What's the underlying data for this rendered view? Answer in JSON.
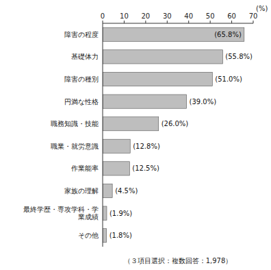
{
  "chart_data": {
    "type": "bar",
    "orientation": "horizontal",
    "categories": [
      "障害の程度",
      "基礎体力",
      "障害の種別",
      "円満な性格",
      "職務知識・技能",
      "職業・就労意識",
      "作業能率",
      "家族の理解",
      "最終学歴・専攻学科・学\n業成績",
      "その他"
    ],
    "values": [
      65.8,
      55.8,
      51.0,
      39.0,
      26.0,
      12.8,
      12.5,
      4.5,
      1.9,
      1.8
    ],
    "value_labels": [
      "(65.8%)",
      "(55.8%)",
      "(51.0%)",
      "(39.0%)",
      "(26.0%)",
      "(12.8%)",
      "(12.5%)",
      "(4.5%)",
      "(1.9%)",
      "(1.8%)"
    ],
    "data_labels": true,
    "color": "#bebebe",
    "xlim": [
      0,
      70
    ],
    "xticks": [
      0,
      10,
      20,
      30,
      40,
      50,
      60,
      70
    ],
    "x_label": "(%)",
    "annotations": [
      "（３項目選択：複数回答：1,978）"
    ],
    "grid": false
  }
}
